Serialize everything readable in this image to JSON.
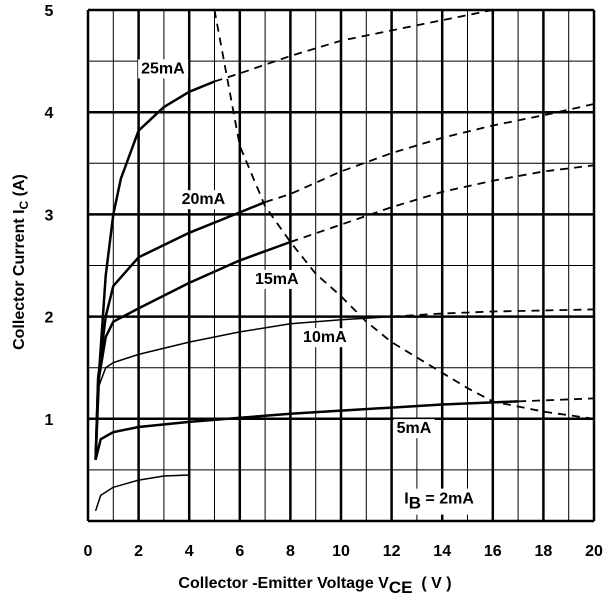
{
  "chart_data": {
    "type": "line",
    "title": "",
    "xlabel": {
      "main": "Collector -Emitter  Voltage V",
      "sub": "CE",
      "unit": "  ( V )"
    },
    "ylabel": {
      "main": "Collector  Current  I",
      "sub": "C",
      "unit": " (A)"
    },
    "xlim": [
      0,
      20
    ],
    "ylim": [
      0,
      5
    ],
    "x_ticks": [
      "0",
      "2",
      "4",
      "6",
      "8",
      "10",
      "12",
      "14",
      "16",
      "18",
      "20"
    ],
    "y_ticks": [
      "1",
      "2",
      "3",
      "4",
      "5"
    ],
    "grid": true,
    "series": [
      {
        "name": "25mA",
        "points": [
          [
            0.3,
            0.6
          ],
          [
            0.45,
            1.5
          ],
          [
            0.7,
            2.4
          ],
          [
            1.0,
            3.0
          ],
          [
            1.3,
            3.35
          ],
          [
            2.0,
            3.82
          ],
          [
            3.0,
            4.05
          ],
          [
            4.0,
            4.2
          ],
          [
            5.0,
            4.3
          ]
        ],
        "dashed_points": [
          [
            5.0,
            4.3
          ],
          [
            6.0,
            4.38
          ],
          [
            8.0,
            4.55
          ],
          [
            10.0,
            4.7
          ],
          [
            12.0,
            4.8
          ],
          [
            14.0,
            4.9
          ],
          [
            16.0,
            5.0
          ]
        ]
      },
      {
        "name": "20mA",
        "points": [
          [
            0.3,
            0.6
          ],
          [
            0.4,
            1.4
          ],
          [
            0.7,
            2.0
          ],
          [
            1.0,
            2.3
          ],
          [
            2.0,
            2.58
          ],
          [
            4.0,
            2.82
          ],
          [
            6.0,
            3.02
          ],
          [
            7.0,
            3.12
          ]
        ],
        "dashed_points": [
          [
            7.0,
            3.12
          ],
          [
            8.0,
            3.2
          ],
          [
            10.0,
            3.42
          ],
          [
            12.0,
            3.6
          ],
          [
            14.0,
            3.75
          ],
          [
            16.0,
            3.87
          ],
          [
            18.0,
            3.97
          ],
          [
            20.0,
            4.08
          ]
        ]
      },
      {
        "name": "15mA",
        "points": [
          [
            0.3,
            0.6
          ],
          [
            0.4,
            1.35
          ],
          [
            0.7,
            1.8
          ],
          [
            1.0,
            1.95
          ],
          [
            2.0,
            2.08
          ],
          [
            4.0,
            2.33
          ],
          [
            6.0,
            2.55
          ],
          [
            8.0,
            2.73
          ]
        ],
        "dashed_points": [
          [
            8.0,
            2.73
          ],
          [
            10.0,
            2.9
          ],
          [
            12.0,
            3.07
          ],
          [
            14.0,
            3.22
          ],
          [
            16.0,
            3.33
          ],
          [
            18.0,
            3.42
          ],
          [
            20.0,
            3.48
          ]
        ]
      },
      {
        "name": "10mA",
        "points": [
          [
            0.3,
            0.6
          ],
          [
            0.4,
            1.3
          ],
          [
            0.7,
            1.5
          ],
          [
            1.0,
            1.55
          ],
          [
            2.0,
            1.63
          ],
          [
            4.0,
            1.75
          ],
          [
            6.0,
            1.85
          ],
          [
            8.0,
            1.93
          ],
          [
            10.0,
            1.97
          ],
          [
            12.0,
            2.0
          ]
        ],
        "dashed_points": [
          [
            12.0,
            2.0
          ],
          [
            14.0,
            2.03
          ],
          [
            16.0,
            2.05
          ],
          [
            18.0,
            2.06
          ],
          [
            20.0,
            2.07
          ]
        ]
      },
      {
        "name": "5mA",
        "points": [
          [
            0.3,
            0.6
          ],
          [
            0.5,
            0.8
          ],
          [
            1.0,
            0.87
          ],
          [
            2.0,
            0.92
          ],
          [
            4.0,
            0.97
          ],
          [
            6.0,
            1.01
          ],
          [
            8.0,
            1.05
          ],
          [
            10.0,
            1.08
          ],
          [
            12.0,
            1.11
          ],
          [
            14.0,
            1.14
          ],
          [
            16.0,
            1.16
          ],
          [
            17.0,
            1.17
          ]
        ],
        "dashed_points": [
          [
            17.0,
            1.17
          ],
          [
            18.0,
            1.18
          ],
          [
            20.0,
            1.2
          ]
        ]
      },
      {
        "name": "I_B = 2mA",
        "points": [
          [
            0.3,
            0.1
          ],
          [
            0.5,
            0.25
          ],
          [
            1.0,
            0.33
          ],
          [
            2.0,
            0.4
          ],
          [
            3.0,
            0.44
          ],
          [
            4.0,
            0.45
          ]
        ],
        "dashed_points": []
      }
    ],
    "power_limit_curve": {
      "style": "dashed",
      "points": [
        [
          5.0,
          5.0
        ],
        [
          6.0,
          3.67
        ],
        [
          7.0,
          3.08
        ],
        [
          8.0,
          2.73
        ],
        [
          9.0,
          2.42
        ],
        [
          10.0,
          2.2
        ],
        [
          11.0,
          1.95
        ],
        [
          12.0,
          1.75
        ],
        [
          13.0,
          1.6
        ],
        [
          14.0,
          1.45
        ],
        [
          15.0,
          1.3
        ],
        [
          16.0,
          1.17
        ],
        [
          18.0,
          1.07
        ],
        [
          20.0,
          1.0
        ]
      ]
    },
    "annotations": [
      {
        "text": "25mA",
        "x": 2.1,
        "y": 4.38
      },
      {
        "text": "20mA",
        "x": 3.7,
        "y": 3.1
      },
      {
        "text": "15mA",
        "x": 6.6,
        "y": 2.32
      },
      {
        "text": "10mA",
        "x": 8.5,
        "y": 1.75
      },
      {
        "text": "5mA",
        "x": 12.2,
        "y": 0.86
      }
    ],
    "ib_label": {
      "main": "I",
      "sub": "B",
      "rest": " = 2mA",
      "x": 12.5,
      "y": 0.17
    }
  }
}
